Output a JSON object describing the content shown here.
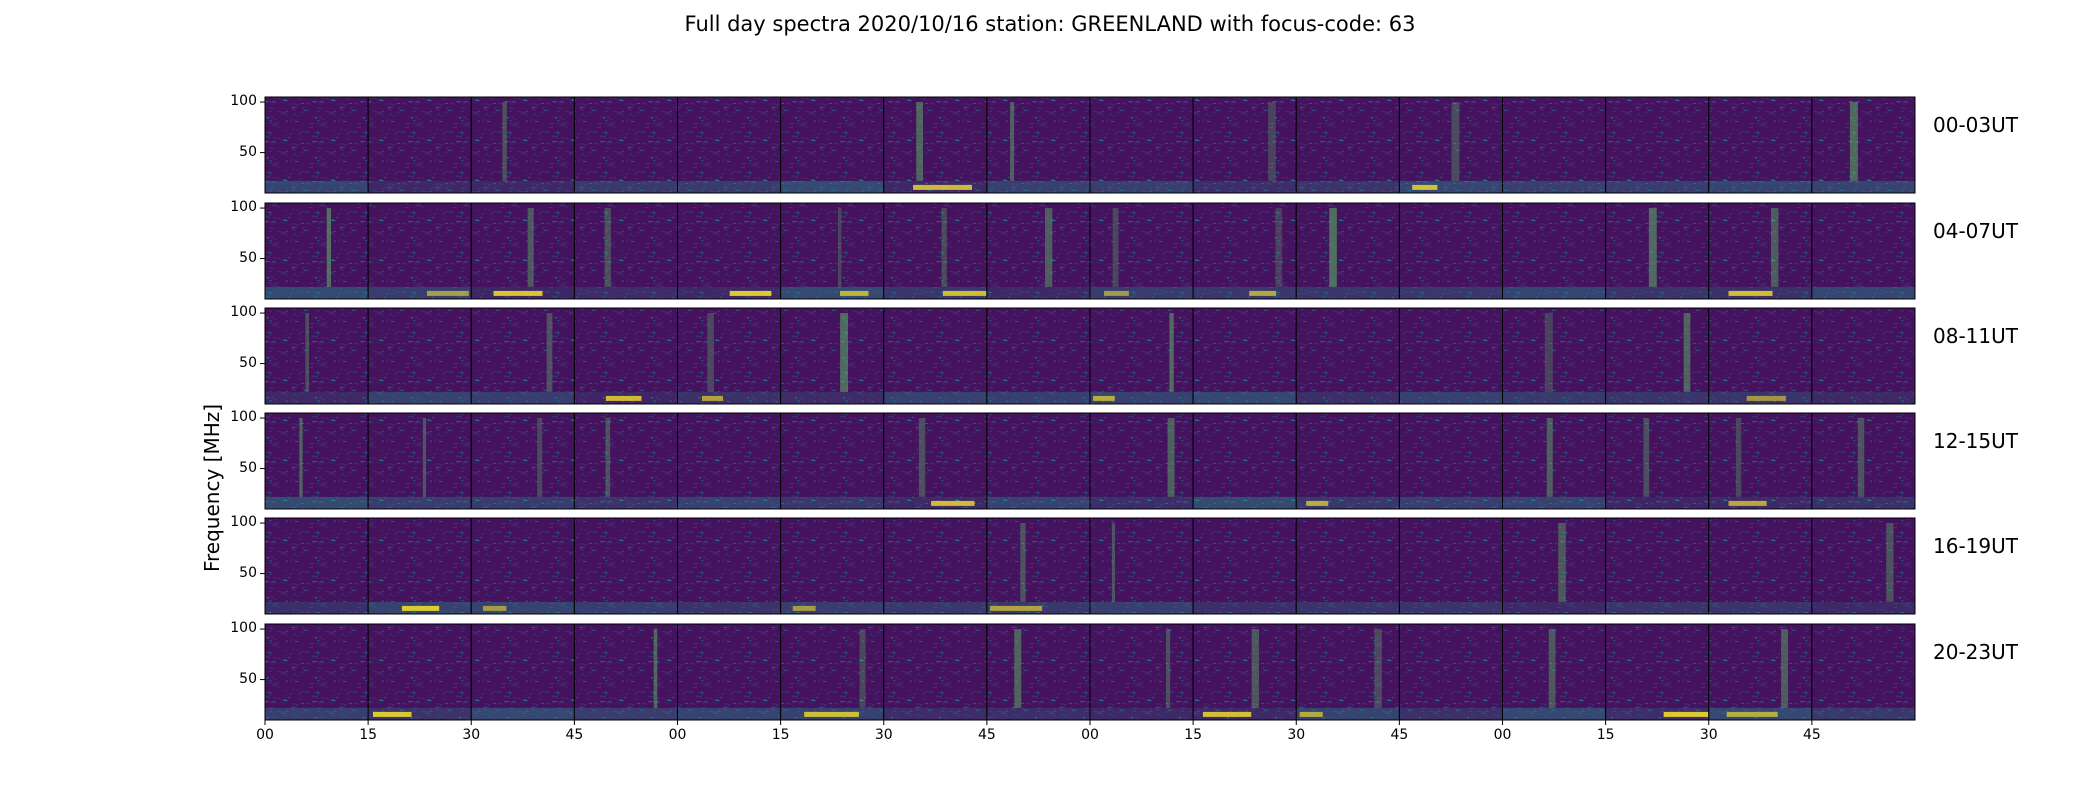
{
  "title": "Full day spectra 2020/10/16 station: GREENLAND with focus-code: 63",
  "ylabel": "Frequency [MHz]",
  "colormap": [
    "#440154",
    "#3b528b",
    "#21918c",
    "#5ec962",
    "#fde725"
  ],
  "chart_data": {
    "type": "heatmap",
    "title": "Full day spectra 2020/10/16 station: GREENLAND with focus-code: 63",
    "ylabel": "Frequency [MHz]",
    "xlabel": "",
    "y_ticks": [
      "100",
      "50"
    ],
    "y_tick_values": [
      100,
      50
    ],
    "ylim": [
      10,
      105
    ],
    "x_ticks": [
      "00",
      "15",
      "30",
      "45",
      "00",
      "15",
      "30",
      "45",
      "00",
      "15",
      "30",
      "45",
      "00",
      "15",
      "30",
      "45"
    ],
    "x_tick_minutes": [
      0,
      15,
      30,
      45,
      60,
      75,
      90,
      105,
      120,
      135,
      150,
      165,
      180,
      195,
      210,
      225
    ],
    "row_labels": [
      "00-03UT",
      "04-07UT",
      "08-11UT",
      "12-15UT",
      "16-19UT",
      "20-23UT"
    ],
    "panels_per_row": 16,
    "panel_minutes": 15
  }
}
